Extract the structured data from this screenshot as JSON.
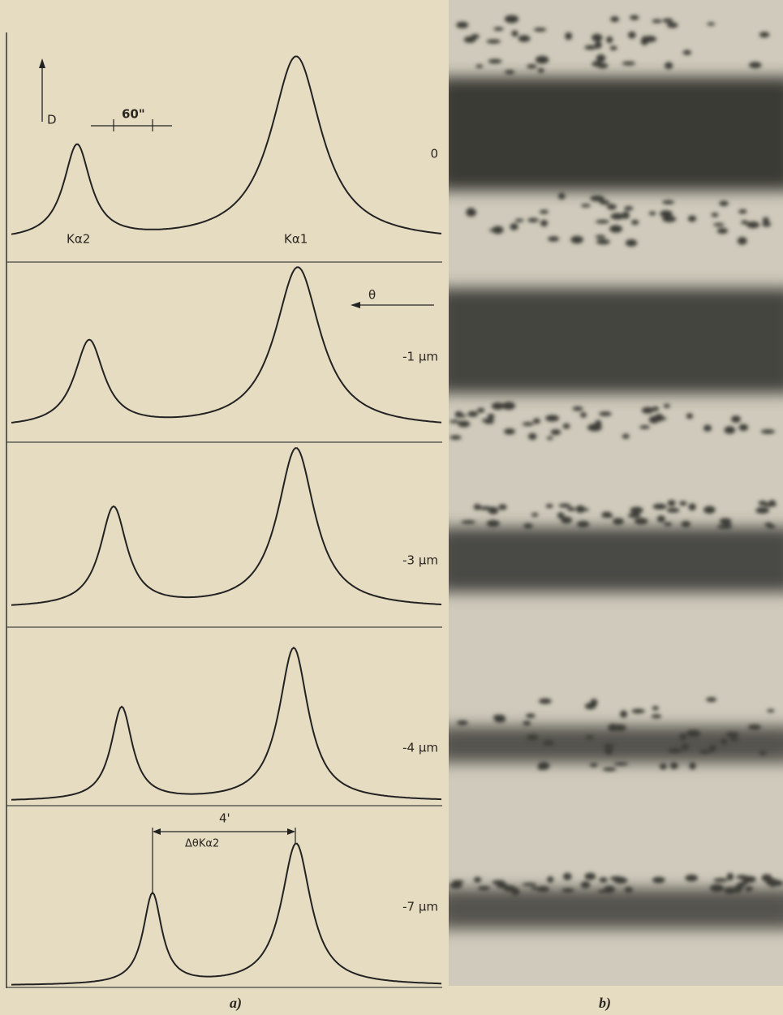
{
  "panel_a": {
    "label": "a)",
    "axis_label": "D",
    "scale_label": "60\"",
    "angle_label": "θ",
    "peak_labels": [
      "Kα2",
      "Kα1"
    ],
    "separation_label": "4'",
    "separation_name": "ΔθKα2",
    "rows": [
      "0",
      "-1 μm",
      "-3 μm",
      "-4 μm",
      "-7 μm"
    ]
  },
  "panel_b": {
    "label": "b)"
  }
}
